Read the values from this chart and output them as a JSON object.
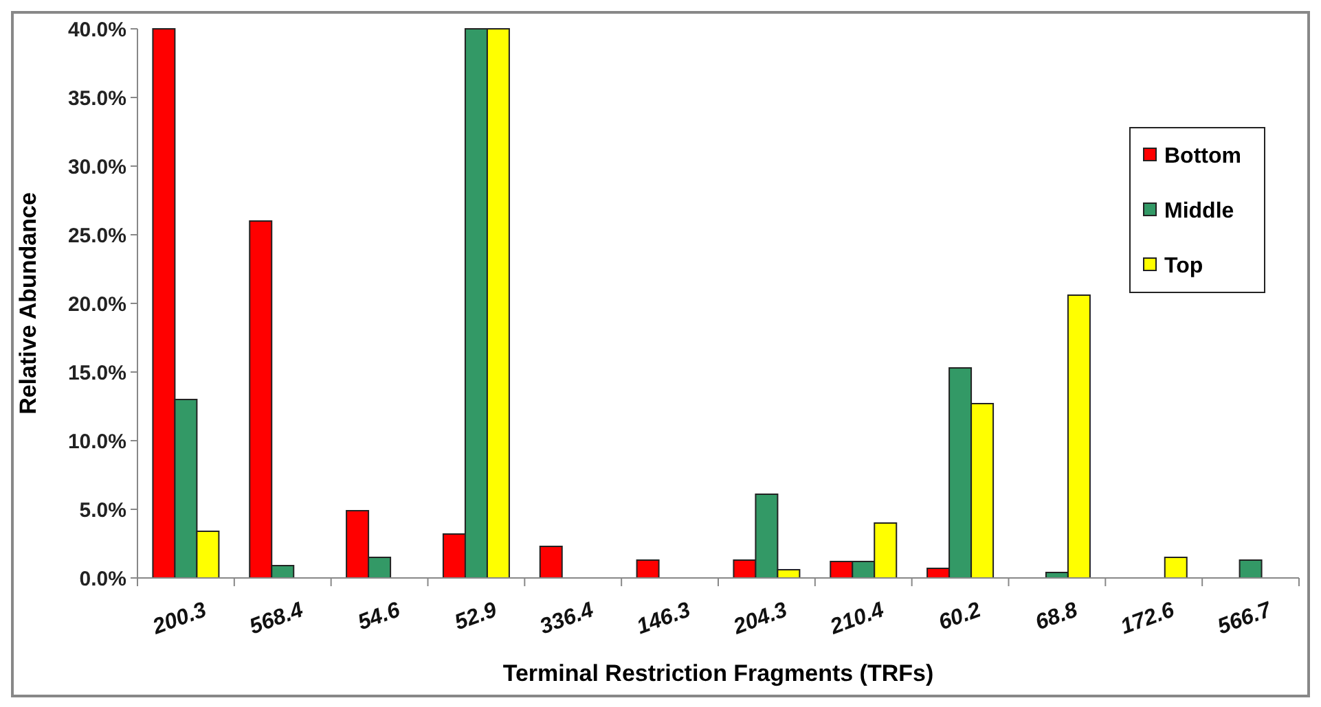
{
  "chart_data": {
    "type": "bar",
    "xlabel": "Terminal Restriction Fragments (TRFs)",
    "ylabel": "Relative Abundance",
    "categories": [
      "200.3",
      "568.4",
      "54.6",
      "52.9",
      "336.4",
      "146.3",
      "204.3",
      "210.4",
      "60.2",
      "68.8",
      "172.6",
      "566.7"
    ],
    "series": [
      {
        "name": "Bottom",
        "color": "#ff0000",
        "values": [
          40,
          26.0,
          4.9,
          3.2,
          2.3,
          1.3,
          1.3,
          1.2,
          0.7,
          0,
          0,
          0
        ]
      },
      {
        "name": "Middle",
        "color": "#339966",
        "values": [
          13.0,
          0.9,
          1.5,
          40,
          0,
          0,
          6.1,
          1.2,
          15.3,
          0.4,
          0,
          1.3
        ]
      },
      {
        "name": "Top",
        "color": "#ffff00",
        "values": [
          3.4,
          0,
          0,
          40,
          0,
          0,
          0.6,
          4.0,
          12.7,
          20.6,
          1.5,
          0
        ]
      }
    ],
    "ylim": [
      0,
      40
    ],
    "yticks": [
      {
        "value": 0,
        "label": "0.0%"
      },
      {
        "value": 5,
        "label": "5.0%"
      },
      {
        "value": 10,
        "label": "10.0%"
      },
      {
        "value": 15,
        "label": "15.0%"
      },
      {
        "value": 20,
        "label": "20.0%"
      },
      {
        "value": 25,
        "label": "25.0%"
      },
      {
        "value": 30,
        "label": "30.0%"
      },
      {
        "value": 35,
        "label": "35.0%"
      },
      {
        "value": 40,
        "label": "40.0%"
      }
    ],
    "grid": false,
    "legend": "right"
  }
}
